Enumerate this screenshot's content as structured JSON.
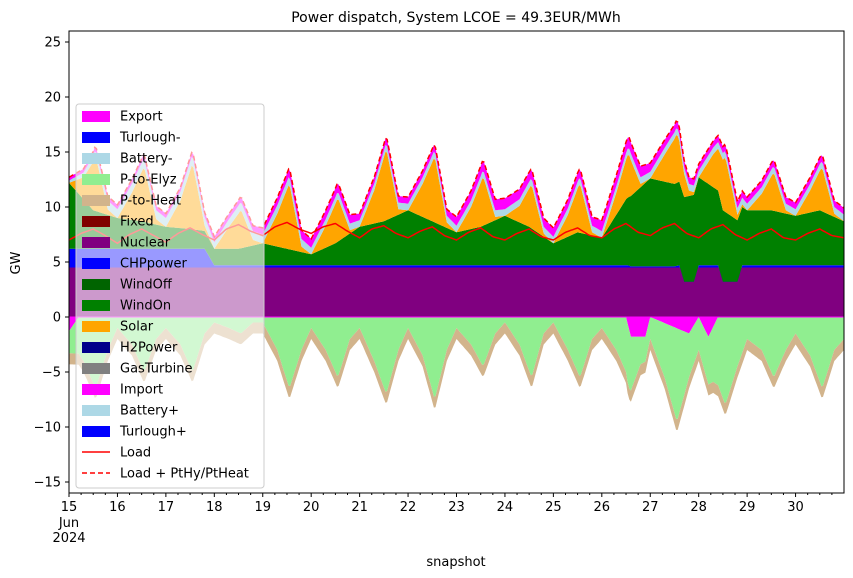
{
  "chart_data": {
    "type": "area",
    "title": "Power dispatch, System LCOE = 49.3EUR/MWh",
    "xlabel": "snapshot",
    "ylabel": "GW",
    "ylim": [
      -16,
      26
    ],
    "yticks": [
      -15,
      -10,
      -5,
      0,
      5,
      10,
      15,
      20,
      25
    ],
    "xlim": [
      15,
      31
    ],
    "xticks": [
      15,
      16,
      17,
      18,
      19,
      20,
      21,
      22,
      23,
      24,
      25,
      26,
      27,
      28,
      29,
      30
    ],
    "xtick_labels": [
      "15",
      "16",
      "17",
      "18",
      "19",
      "20",
      "21",
      "22",
      "23",
      "24",
      "25",
      "26",
      "27",
      "28",
      "29",
      "30"
    ],
    "x_sublabels": [
      "Jun",
      "2024"
    ],
    "grid": false,
    "legend_position": "left",
    "legend": [
      {
        "label": "Export",
        "color": "#ff00ff",
        "kind": "patch"
      },
      {
        "label": "Turlough-",
        "color": "#0000ff",
        "kind": "patch"
      },
      {
        "label": "Battery-",
        "color": "#add8e6",
        "kind": "patch"
      },
      {
        "label": "P-to-Elyz",
        "color": "#90ee90",
        "kind": "patch"
      },
      {
        "label": "P-to-Heat",
        "color": "#d2b48c",
        "kind": "patch"
      },
      {
        "label": "Fixed",
        "color": "#800000",
        "kind": "patch"
      },
      {
        "label": "Nuclear",
        "color": "#800080",
        "kind": "patch"
      },
      {
        "label": "CHPpower",
        "color": "#0000ff",
        "kind": "patch"
      },
      {
        "label": "WindOff",
        "color": "#006400",
        "kind": "patch"
      },
      {
        "label": "WindOn",
        "color": "#008000",
        "kind": "patch"
      },
      {
        "label": "Solar",
        "color": "#ffa500",
        "kind": "patch"
      },
      {
        "label": "H2Power",
        "color": "#00008b",
        "kind": "patch"
      },
      {
        "label": "GasTurbine",
        "color": "#808080",
        "kind": "patch"
      },
      {
        "label": "Import",
        "color": "#ff00ff",
        "kind": "patch"
      },
      {
        "label": "Battery+",
        "color": "#add8e6",
        "kind": "patch"
      },
      {
        "label": "Turlough+",
        "color": "#0000ff",
        "kind": "patch"
      },
      {
        "label": "Load",
        "color": "#ff0000",
        "kind": "line"
      },
      {
        "label": "Load + PtHy/PtHeat",
        "color": "#ff0000",
        "kind": "dashed"
      }
    ],
    "series": [
      {
        "name": "Nuclear",
        "color": "#800080",
        "x": [
          15,
          31
        ],
        "values": [
          4.5,
          4.5
        ]
      },
      {
        "name": "CHPpower",
        "color": "#0000ff",
        "x": [
          15,
          17.8,
          18,
          26.5,
          26.55,
          26.6,
          27.5,
          27.6,
          27.7,
          27.9,
          28.0,
          28.4,
          28.5,
          28.6,
          28.8,
          28.9,
          31
        ],
        "values": [
          1.7,
          1.7,
          0.2,
          0.2,
          0.2,
          0.1,
          0.1,
          0.2,
          -1.3,
          -1.3,
          0.2,
          0.2,
          -1.3,
          -1.3,
          -1.3,
          0.2,
          0.2
        ]
      },
      {
        "name": "WindOn",
        "color": "#008000",
        "x": [
          15,
          15.5,
          16,
          16.5,
          17,
          17.5,
          18,
          18.5,
          19,
          19.5,
          20,
          20.5,
          21,
          21.5,
          22,
          22.5,
          23,
          23.5,
          24,
          24.5,
          25,
          25.5,
          26,
          26.5,
          27,
          27.5,
          28,
          28.5,
          29,
          29.5,
          30,
          30.5,
          31
        ],
        "values": [
          6.0,
          3.5,
          2.8,
          2.5,
          2.0,
          1.8,
          1.5,
          1.5,
          2.0,
          1.5,
          1.0,
          2.0,
          3.5,
          4.0,
          5.0,
          4.0,
          3.0,
          3.5,
          4.5,
          3.5,
          2.0,
          3.0,
          2.5,
          6.0,
          8.0,
          7.5,
          8.0,
          6.5,
          5.0,
          5.0,
          4.5,
          5.0,
          4.0
        ]
      },
      {
        "name": "Solar",
        "color": "#ffa500",
        "x": [
          15,
          15.3,
          15.55,
          15.8,
          16,
          16.3,
          16.55,
          16.8,
          17,
          17.3,
          17.55,
          17.8,
          18,
          18.3,
          18.55,
          18.8,
          19,
          19.3,
          19.55,
          19.8,
          20,
          20.3,
          20.55,
          20.8,
          21,
          21.3,
          21.55,
          21.8,
          22,
          22.3,
          22.55,
          22.8,
          23,
          23.3,
          23.55,
          23.8,
          24,
          24.3,
          24.55,
          24.8,
          25,
          25.3,
          25.55,
          25.8,
          26,
          26.3,
          26.55,
          26.8,
          27,
          27.3,
          27.55,
          27.8,
          28,
          28.3,
          28.55,
          28.8,
          29,
          29.3,
          29.55,
          29.8,
          30,
          30.3,
          30.55,
          30.8,
          31
        ],
        "values": [
          0,
          2.0,
          5.0,
          0.5,
          0,
          2.5,
          5.0,
          0.5,
          0,
          2.5,
          6.0,
          0.5,
          0,
          2.0,
          3.5,
          0.5,
          0,
          3.0,
          6.0,
          0.5,
          0,
          2.0,
          4.0,
          0.3,
          0,
          3.0,
          6.5,
          0.5,
          0,
          3.0,
          6.0,
          0.5,
          0,
          2.0,
          4.5,
          0.3,
          0,
          1.5,
          4.0,
          0.3,
          0,
          2.0,
          4.5,
          0.3,
          0,
          2.0,
          4.0,
          0.3,
          0,
          2.5,
          4.5,
          0.5,
          0,
          3.0,
          5.0,
          0.5,
          0,
          1.5,
          3.5,
          0.3,
          0,
          2.0,
          4.0,
          0.3,
          0
        ]
      },
      {
        "name": "Battery+",
        "color": "#add8e6",
        "x": [
          15,
          15.8,
          16,
          16.8,
          17,
          17.8,
          18,
          18.8,
          19,
          19.8,
          20,
          20.8,
          21,
          21.8,
          22,
          22.8,
          23,
          23.8,
          24,
          24.8,
          25,
          25.8,
          26,
          26.8,
          27,
          27.8,
          28,
          28.8,
          29,
          29.8,
          30,
          30.8,
          31
        ],
        "values": [
          0.2,
          0.8,
          0.8,
          0.8,
          0.8,
          0.8,
          0.6,
          0.8,
          0.8,
          0.7,
          0.6,
          0.6,
          0.6,
          0.6,
          0.6,
          0.6,
          0.6,
          0.6,
          0.6,
          0.6,
          0.6,
          0.6,
          0.6,
          0.6,
          0.6,
          0.6,
          0.6,
          0.6,
          0.6,
          0.6,
          0.6,
          0.6,
          0.6
        ]
      },
      {
        "name": "Import",
        "color": "#ff00ff",
        "x": [
          15,
          15.8,
          16,
          16.8,
          17,
          17.8,
          18,
          18.8,
          19,
          19.8,
          20,
          20.8,
          21,
          21.8,
          22,
          22.8,
          23,
          23.8,
          24,
          24.8,
          25,
          25.8,
          26,
          26.8,
          27,
          27.8,
          28,
          28.8,
          29,
          29.8,
          30,
          30.8,
          31
        ],
        "values": [
          0.3,
          0.4,
          0.4,
          0.4,
          0.4,
          0.4,
          0.5,
          0.5,
          0.6,
          0.8,
          0.8,
          0.8,
          0.6,
          0.6,
          0.6,
          0.6,
          0.8,
          1.0,
          1.0,
          0.8,
          0.8,
          0.8,
          1.0,
          1.0,
          0.8,
          0.6,
          0.6,
          0.6,
          0.6,
          0.6,
          0.6,
          0.6,
          0.6
        ]
      },
      {
        "name": "Export",
        "color": "#ff00ff",
        "x": [
          15,
          15.2,
          26.5,
          26.6,
          26.9,
          27.0,
          27.8,
          28.0,
          28.2,
          28.4,
          31
        ],
        "values": [
          -1.3,
          0,
          0,
          -1.8,
          -1.8,
          0,
          -1.5,
          0,
          -1.8,
          0,
          0
        ]
      },
      {
        "name": "P-to-Elyz",
        "color": "#90ee90",
        "x": [
          15,
          15.3,
          15.55,
          15.8,
          16,
          16.3,
          16.55,
          16.8,
          17,
          17.3,
          17.55,
          17.8,
          18,
          18.3,
          18.55,
          18.8,
          19,
          19.3,
          19.55,
          19.8,
          20,
          20.3,
          20.55,
          20.8,
          21,
          21.3,
          21.55,
          21.8,
          22,
          22.3,
          22.55,
          22.8,
          23,
          23.3,
          23.55,
          23.8,
          24,
          24.3,
          24.55,
          24.8,
          25,
          25.3,
          25.55,
          25.8,
          26,
          26.3,
          26.55,
          26.8,
          27,
          27.3,
          27.55,
          27.8,
          28,
          28.3,
          28.55,
          28.8,
          29,
          29.3,
          29.55,
          29.8,
          30,
          30.3,
          30.55,
          30.8,
          31
        ],
        "values": [
          -2.0,
          -4.0,
          -6.5,
          -3.0,
          -1.0,
          -2.5,
          -5.0,
          -2.0,
          -1.0,
          -2.5,
          -5.0,
          -1.5,
          -0.5,
          -1.0,
          -1.5,
          -0.5,
          -0.5,
          -3.0,
          -6.5,
          -3.0,
          -1.0,
          -3.0,
          -5.5,
          -2.0,
          -1.0,
          -4.0,
          -7.0,
          -3.0,
          -1.0,
          -3.5,
          -7.5,
          -3.0,
          -1.0,
          -2.5,
          -4.5,
          -1.5,
          -0.5,
          -2.5,
          -5.5,
          -1.5,
          -0.5,
          -3.0,
          -5.5,
          -2.0,
          -1.0,
          -3.0,
          -5.5,
          -2.5,
          -2.0,
          -5.0,
          -8.5,
          -4.0,
          -3.0,
          -5.0,
          -8.0,
          -4.5,
          -2.0,
          -3.0,
          -5.5,
          -3.0,
          -1.5,
          -3.5,
          -6.5,
          -3.0,
          -2.0
        ]
      },
      {
        "name": "P-to-Heat",
        "color": "#d2b48c",
        "x": [
          15,
          31
        ],
        "values": [
          -1.0,
          -1.0
        ]
      },
      {
        "name": "Load",
        "color": "#ff0000",
        "x": [
          15,
          15.25,
          15.5,
          15.75,
          16,
          16.25,
          16.5,
          16.75,
          17,
          17.25,
          17.5,
          17.75,
          18,
          18.25,
          18.5,
          18.75,
          19,
          19.25,
          19.5,
          19.75,
          20,
          20.25,
          20.5,
          20.75,
          21,
          21.25,
          21.5,
          21.75,
          22,
          22.25,
          22.5,
          22.75,
          23,
          23.25,
          23.5,
          23.75,
          24,
          24.25,
          24.5,
          24.75,
          25,
          25.25,
          25.5,
          25.75,
          26,
          26.25,
          26.5,
          26.75,
          27,
          27.25,
          27.5,
          27.75,
          28,
          28.25,
          28.5,
          28.75,
          29,
          29.25,
          29.5,
          29.75,
          30,
          30.25,
          30.5,
          30.75,
          31
        ],
        "values": [
          7.0,
          7.6,
          8.0,
          7.4,
          6.7,
          7.5,
          8.0,
          7.4,
          6.8,
          7.6,
          8.1,
          7.5,
          7.0,
          8.0,
          8.4,
          7.8,
          7.4,
          8.2,
          8.6,
          8.0,
          7.6,
          8.2,
          8.5,
          7.8,
          7.2,
          8.0,
          8.3,
          7.6,
          7.2,
          7.8,
          8.2,
          7.4,
          7.0,
          7.7,
          8.1,
          7.3,
          7.0,
          7.6,
          8.0,
          7.3,
          7.0,
          7.7,
          8.1,
          7.4,
          7.2,
          8.0,
          8.5,
          7.7,
          7.4,
          8.1,
          8.5,
          7.6,
          7.2,
          8.0,
          8.4,
          7.5,
          7.0,
          7.6,
          8.0,
          7.2,
          7.0,
          7.6,
          8.0,
          7.4,
          7.2
        ]
      }
    ]
  }
}
